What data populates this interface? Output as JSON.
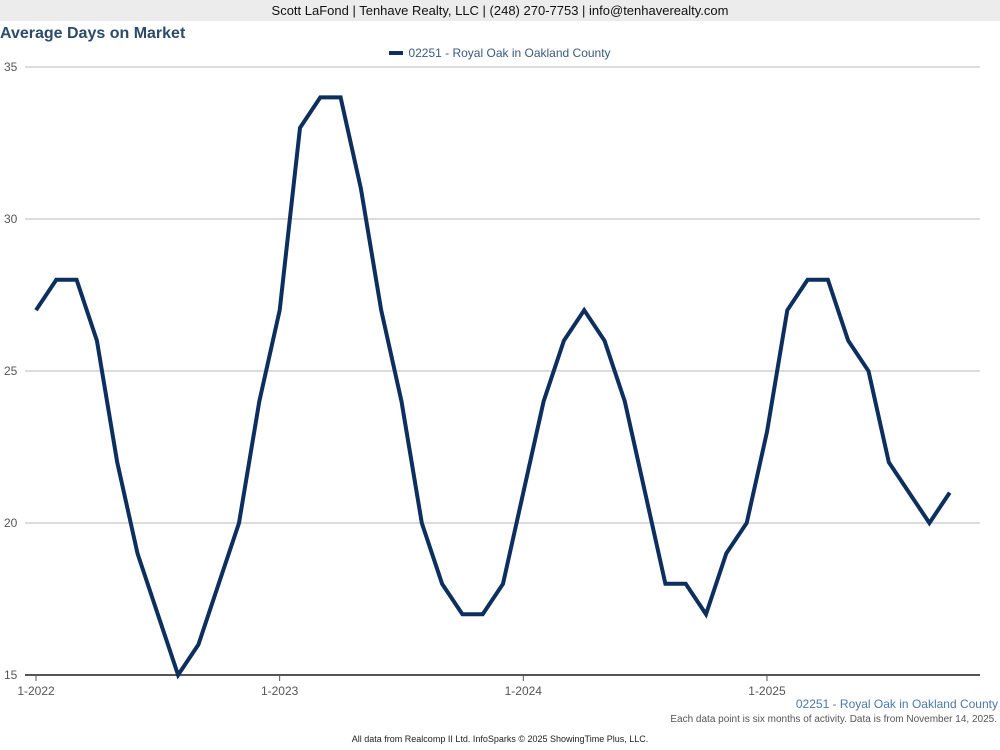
{
  "header": {
    "contact": "Scott LaFond | Tenhave Realty, LLC | (248) 270-7753 | info@tenhaverealty.com"
  },
  "footer": {
    "series_label": "02251 - Royal Oak in Oakland County",
    "note": "Each data point is six months of activity. Data is from November 14, 2025.",
    "source": "All data from Realcomp II Ltd. InfoSparks © 2025 ShowingTime Plus, LLC."
  },
  "colors": {
    "series": "#0c2f5e",
    "grid": "#b8b8b8",
    "axis": "#555555",
    "title": "#2c4a6b"
  },
  "chart_data": {
    "type": "line",
    "title": "Average Days on Market",
    "xlabel": "",
    "ylabel": "",
    "ylim": [
      15,
      35
    ],
    "yticks": [
      15,
      20,
      25,
      30,
      35
    ],
    "xlim": [
      "2022-01",
      "2025-11"
    ],
    "xticks": [
      {
        "label": "1-2022",
        "month": "2022-01"
      },
      {
        "label": "1-2023",
        "month": "2023-01"
      },
      {
        "label": "1-2024",
        "month": "2024-01"
      },
      {
        "label": "1-2025",
        "month": "2025-01"
      }
    ],
    "grid": true,
    "legend_position": "top-center",
    "series": [
      {
        "name": "02251 - Royal Oak in Oakland County",
        "color": "#0c2f5e",
        "data": [
          {
            "x": "2022-01",
            "y": 27
          },
          {
            "x": "2022-02",
            "y": 28
          },
          {
            "x": "2022-03",
            "y": 28
          },
          {
            "x": "2022-04",
            "y": 26
          },
          {
            "x": "2022-05",
            "y": 22
          },
          {
            "x": "2022-06",
            "y": 19
          },
          {
            "x": "2022-07",
            "y": 17
          },
          {
            "x": "2022-08",
            "y": 15
          },
          {
            "x": "2022-09",
            "y": 16
          },
          {
            "x": "2022-10",
            "y": 18
          },
          {
            "x": "2022-11",
            "y": 20
          },
          {
            "x": "2022-12",
            "y": 24
          },
          {
            "x": "2023-01",
            "y": 27
          },
          {
            "x": "2023-02",
            "y": 33
          },
          {
            "x": "2023-03",
            "y": 34
          },
          {
            "x": "2023-04",
            "y": 34
          },
          {
            "x": "2023-05",
            "y": 31
          },
          {
            "x": "2023-06",
            "y": 27
          },
          {
            "x": "2023-07",
            "y": 24
          },
          {
            "x": "2023-08",
            "y": 20
          },
          {
            "x": "2023-09",
            "y": 18
          },
          {
            "x": "2023-10",
            "y": 17
          },
          {
            "x": "2023-11",
            "y": 17
          },
          {
            "x": "2023-12",
            "y": 18
          },
          {
            "x": "2024-01",
            "y": 21
          },
          {
            "x": "2024-02",
            "y": 24
          },
          {
            "x": "2024-03",
            "y": 26
          },
          {
            "x": "2024-04",
            "y": 27
          },
          {
            "x": "2024-05",
            "y": 26
          },
          {
            "x": "2024-06",
            "y": 24
          },
          {
            "x": "2024-07",
            "y": 21
          },
          {
            "x": "2024-08",
            "y": 18
          },
          {
            "x": "2024-09",
            "y": 18
          },
          {
            "x": "2024-10",
            "y": 17
          },
          {
            "x": "2024-11",
            "y": 19
          },
          {
            "x": "2024-12",
            "y": 20
          },
          {
            "x": "2025-01",
            "y": 23
          },
          {
            "x": "2025-02",
            "y": 27
          },
          {
            "x": "2025-03",
            "y": 28
          },
          {
            "x": "2025-04",
            "y": 28
          },
          {
            "x": "2025-05",
            "y": 26
          },
          {
            "x": "2025-06",
            "y": 25
          },
          {
            "x": "2025-07",
            "y": 22
          },
          {
            "x": "2025-08",
            "y": 21
          },
          {
            "x": "2025-09",
            "y": 20
          },
          {
            "x": "2025-10",
            "y": 21
          }
        ]
      }
    ]
  }
}
